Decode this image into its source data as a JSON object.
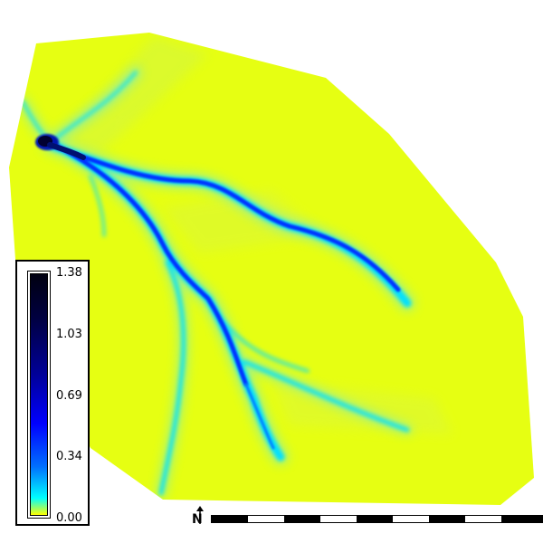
{
  "legend": {
    "ticks": [
      "1.38",
      "1.03",
      "0.69",
      "0.34",
      "0.00"
    ]
  },
  "north_arrow": {
    "letter": "N"
  },
  "colors": {
    "terrain_fill": "#e8ff10",
    "channel_dark": "#000020",
    "channel_blue": "#0033ff",
    "channel_cyan": "#00e0ff",
    "background": "#ffffff"
  },
  "icons": [
    "north-arrow-icon",
    "scale-bar"
  ]
}
